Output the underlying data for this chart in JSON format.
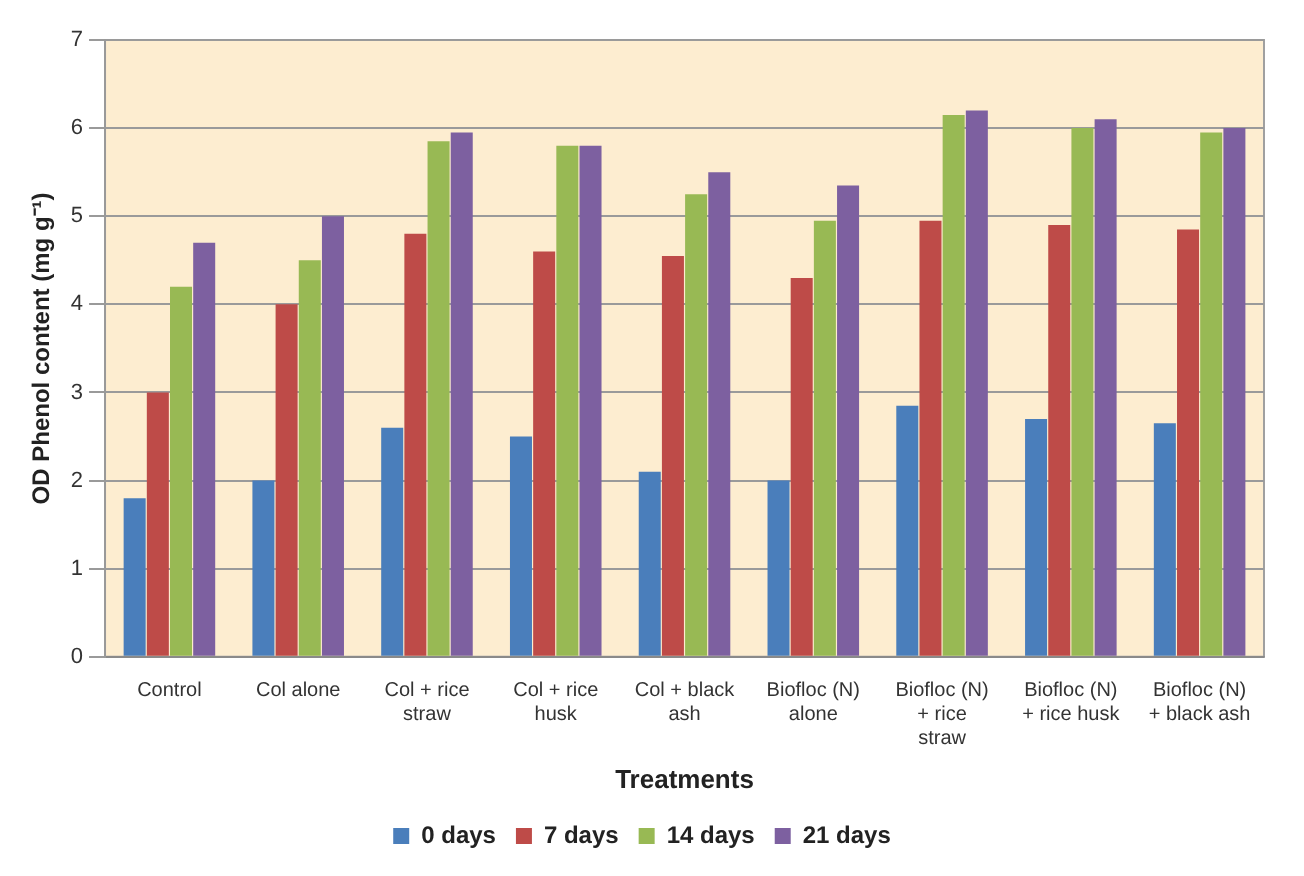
{
  "chart_data": {
    "type": "bar",
    "xlabel": "Treatments",
    "ylabel": "OD Phenol content (mg g⁻¹)",
    "categories": [
      "Control",
      "Col alone",
      "Col + rice straw",
      "Col + rice husk",
      "Col + black ash",
      "Biofloc (N) alone",
      "Biofloc (N) + rice straw",
      "Biofloc (N) + rice husk",
      "Biofloc (N) + black ash"
    ],
    "series": [
      {
        "name": "0 days",
        "color": "#4a7ebb",
        "values": [
          1.8,
          2.0,
          2.6,
          2.5,
          2.1,
          2.0,
          2.85,
          2.7,
          2.65
        ]
      },
      {
        "name": "7 days",
        "color": "#be4b48",
        "values": [
          3.0,
          4.0,
          4.8,
          4.6,
          4.55,
          4.3,
          4.95,
          4.9,
          4.85
        ]
      },
      {
        "name": "14 days",
        "color": "#98b954",
        "values": [
          4.2,
          4.5,
          5.85,
          5.8,
          5.25,
          4.95,
          6.15,
          6.0,
          5.95
        ]
      },
      {
        "name": "21 days",
        "color": "#7d60a0",
        "values": [
          4.7,
          5.0,
          5.95,
          5.8,
          5.5,
          5.35,
          6.2,
          6.1,
          6.0
        ]
      }
    ],
    "ylim": [
      0,
      7
    ],
    "yticks": [
      0,
      1,
      2,
      3,
      4,
      5,
      6,
      7
    ],
    "grid": "y",
    "legend": "bottom"
  }
}
